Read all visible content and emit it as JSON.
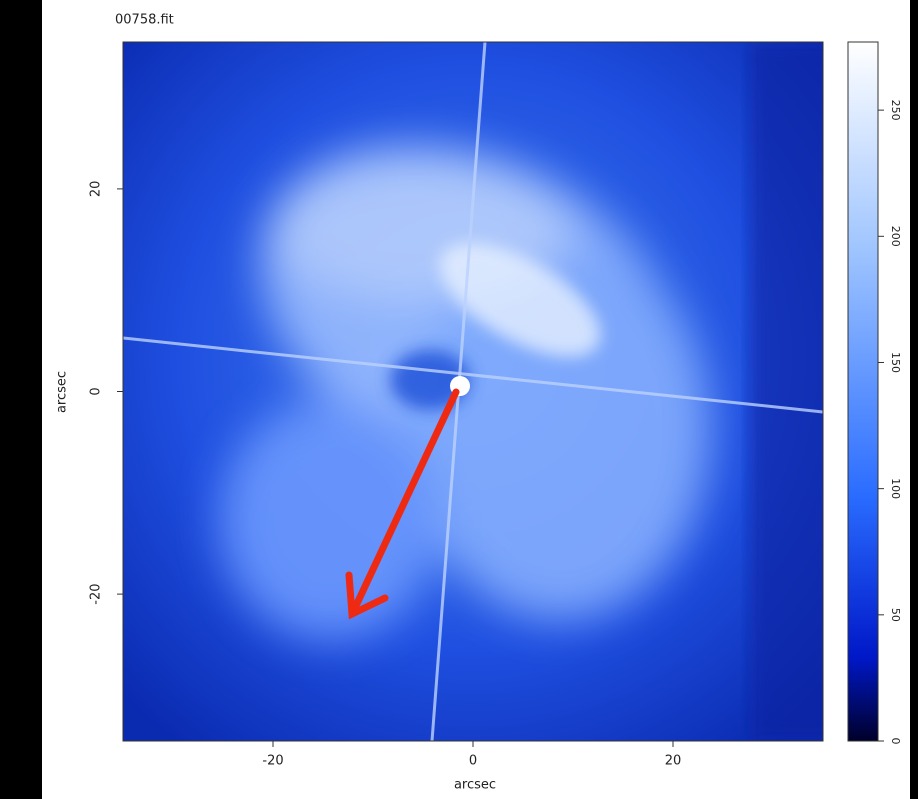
{
  "chart_data": {
    "type": "image",
    "title": "00758.fit",
    "x_label": "arcsec",
    "y_label": "arcsec",
    "xlim": [
      -35,
      35
    ],
    "ylim": [
      -34.5,
      34.5
    ],
    "xticks": [
      -20,
      0,
      20
    ],
    "yticks": [
      -20,
      0,
      20
    ],
    "colorbar": {
      "lim": [
        0,
        277
      ],
      "ticks": [
        0,
        50,
        100,
        150,
        200,
        250
      ]
    }
  }
}
